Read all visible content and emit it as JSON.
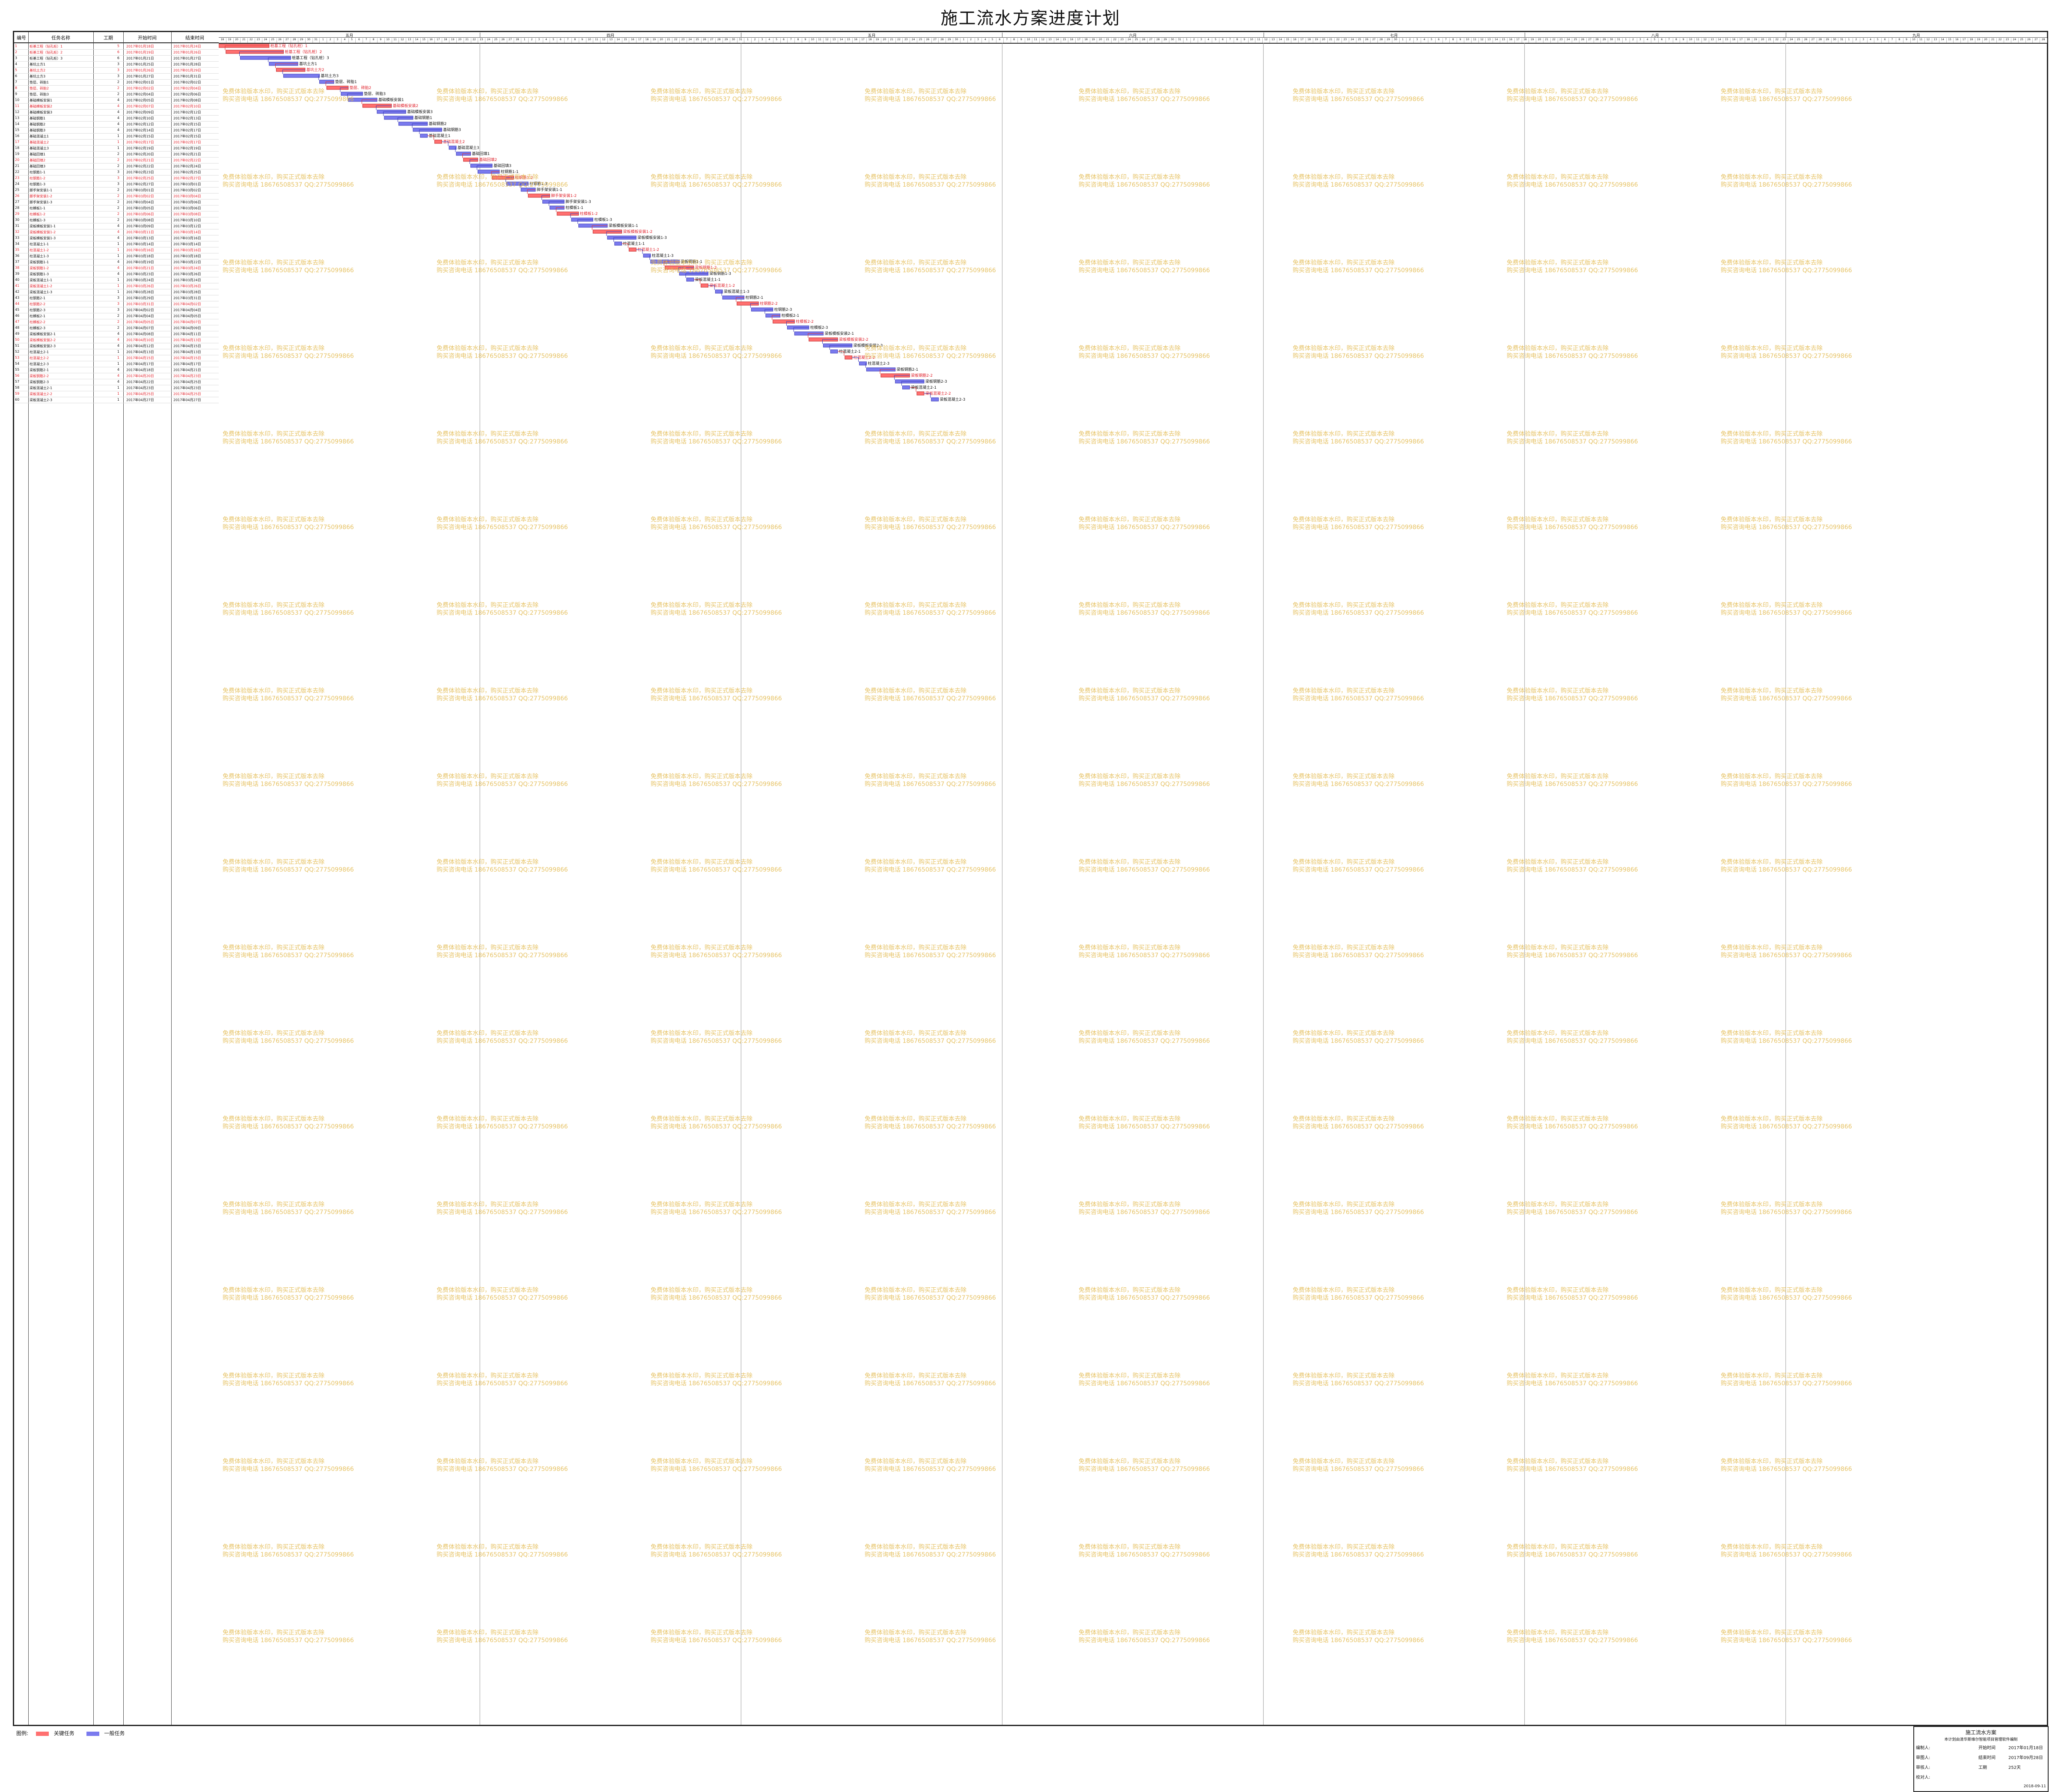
{
  "title": "施工流水方案进度计划",
  "columns": [
    "编号",
    "任务名称",
    "工期",
    "开始时间",
    "结束时间"
  ],
  "months": [
    "五月",
    "四月",
    "五月",
    "六月",
    "七月",
    "八月",
    "九月"
  ],
  "tasks": [
    {
      "id": "1",
      "name": "桩基工程（钻孔桩）1",
      "dur": "5",
      "start": "2017年01月18日",
      "end": "2017年01月24日",
      "crit": true
    },
    {
      "id": "2",
      "name": "桩基工程（钻孔桩）2",
      "dur": "6",
      "start": "2017年01月19日",
      "end": "2017年01月26日",
      "crit": true
    },
    {
      "id": "3",
      "name": "桩基工程（钻孔桩）3",
      "dur": "6",
      "start": "2017年01月21日",
      "end": "2017年01月27日",
      "crit": false
    },
    {
      "id": "4",
      "name": "基坑土方1",
      "dur": "3",
      "start": "2017年01月25日",
      "end": "2017年01月28日",
      "crit": false
    },
    {
      "id": "5",
      "name": "基坑土方2",
      "dur": "3",
      "start": "2017年01月26日",
      "end": "2017年01月29日",
      "crit": true
    },
    {
      "id": "6",
      "name": "基坑土方3",
      "dur": "3",
      "start": "2017年01月27日",
      "end": "2017年01月31日",
      "crit": false
    },
    {
      "id": "7",
      "name": "垫层、砖胎1",
      "dur": "2",
      "start": "2017年02月01日",
      "end": "2017年02月02日",
      "crit": false
    },
    {
      "id": "8",
      "name": "垫层、砖胎2",
      "dur": "2",
      "start": "2017年02月02日",
      "end": "2017年02月04日",
      "crit": true
    },
    {
      "id": "9",
      "name": "垫层、砖胎3",
      "dur": "2",
      "start": "2017年02月04日",
      "end": "2017年02月06日",
      "crit": false
    },
    {
      "id": "10",
      "name": "基础模板安装1",
      "dur": "4",
      "start": "2017年02月05日",
      "end": "2017年02月08日",
      "crit": false
    },
    {
      "id": "11",
      "name": "基础模板安装2",
      "dur": "4",
      "start": "2017年02月07日",
      "end": "2017年02月10日",
      "crit": true
    },
    {
      "id": "12",
      "name": "基础模板安装3",
      "dur": "4",
      "start": "2017年02月09日",
      "end": "2017年02月12日",
      "crit": false
    },
    {
      "id": "13",
      "name": "基础钢筋1",
      "dur": "4",
      "start": "2017年02月10日",
      "end": "2017年02月13日",
      "crit": false
    },
    {
      "id": "14",
      "name": "基础钢筋2",
      "dur": "4",
      "start": "2017年02月12日",
      "end": "2017年02月15日",
      "crit": false
    },
    {
      "id": "15",
      "name": "基础钢筋3",
      "dur": "4",
      "start": "2017年02月14日",
      "end": "2017年02月17日",
      "crit": false
    },
    {
      "id": "16",
      "name": "基础混凝土1",
      "dur": "1",
      "start": "2017年02月15日",
      "end": "2017年02月15日",
      "crit": false
    },
    {
      "id": "17",
      "name": "基础混凝土2",
      "dur": "1",
      "start": "2017年02月17日",
      "end": "2017年02月17日",
      "crit": true
    },
    {
      "id": "18",
      "name": "基础混凝土3",
      "dur": "1",
      "start": "2017年02月19日",
      "end": "2017年02月19日",
      "crit": false
    },
    {
      "id": "19",
      "name": "基础回填1",
      "dur": "2",
      "start": "2017年02月20日",
      "end": "2017年02月21日",
      "crit": false
    },
    {
      "id": "20",
      "name": "基础回填2",
      "dur": "2",
      "start": "2017年02月21日",
      "end": "2017年02月22日",
      "crit": true
    },
    {
      "id": "21",
      "name": "基础回填3",
      "dur": "2",
      "start": "2017年02月22日",
      "end": "2017年02月24日",
      "crit": false
    },
    {
      "id": "22",
      "name": "柱钢筋1-1",
      "dur": "3",
      "start": "2017年02月23日",
      "end": "2017年02月25日",
      "crit": false
    },
    {
      "id": "23",
      "name": "柱钢筋1-2",
      "dur": "3",
      "start": "2017年02月25日",
      "end": "2017年02月27日",
      "crit": true
    },
    {
      "id": "24",
      "name": "柱钢筋1-3",
      "dur": "3",
      "start": "2017年02月27日",
      "end": "2017年03月01日",
      "crit": false
    },
    {
      "id": "25",
      "name": "脚手架安装1-1",
      "dur": "2",
      "start": "2017年03月01日",
      "end": "2017年03月02日",
      "crit": false
    },
    {
      "id": "26",
      "name": "脚手架安装1-2",
      "dur": "2",
      "start": "2017年03月02日",
      "end": "2017年03月04日",
      "crit": true
    },
    {
      "id": "27",
      "name": "脚手架安装1-3",
      "dur": "2",
      "start": "2017年03月04日",
      "end": "2017年03月06日",
      "crit": false
    },
    {
      "id": "28",
      "name": "柱模板1-1",
      "dur": "2",
      "start": "2017年03月05日",
      "end": "2017年03月06日",
      "crit": false
    },
    {
      "id": "29",
      "name": "柱模板1-2",
      "dur": "2",
      "start": "2017年03月06日",
      "end": "2017年03月08日",
      "crit": true
    },
    {
      "id": "30",
      "name": "柱模板1-3",
      "dur": "2",
      "start": "2017年03月08日",
      "end": "2017年03月10日",
      "crit": false
    },
    {
      "id": "31",
      "name": "梁板模板安装1-1",
      "dur": "4",
      "start": "2017年03月09日",
      "end": "2017年03月12日",
      "crit": false
    },
    {
      "id": "32",
      "name": "梁板模板安装1-2",
      "dur": "4",
      "start": "2017年03月11日",
      "end": "2017年03月14日",
      "crit": true
    },
    {
      "id": "33",
      "name": "梁板模板安装1-3",
      "dur": "4",
      "start": "2017年03月13日",
      "end": "2017年03月16日",
      "crit": false
    },
    {
      "id": "34",
      "name": "柱混凝土1-1",
      "dur": "1",
      "start": "2017年03月14日",
      "end": "2017年03月14日",
      "crit": false
    },
    {
      "id": "35",
      "name": "柱混凝土1-2",
      "dur": "1",
      "start": "2017年03月16日",
      "end": "2017年03月16日",
      "crit": true
    },
    {
      "id": "36",
      "name": "柱混凝土1-3",
      "dur": "1",
      "start": "2017年03月18日",
      "end": "2017年03月18日",
      "crit": false
    },
    {
      "id": "37",
      "name": "梁板钢筋1-1",
      "dur": "4",
      "start": "2017年03月19日",
      "end": "2017年03月22日",
      "crit": false
    },
    {
      "id": "38",
      "name": "梁板钢筋1-2",
      "dur": "4",
      "start": "2017年03月21日",
      "end": "2017年03月24日",
      "crit": true
    },
    {
      "id": "39",
      "name": "梁板钢筋1-3",
      "dur": "4",
      "start": "2017年03月23日",
      "end": "2017年03月26日",
      "crit": false
    },
    {
      "id": "40",
      "name": "梁板混凝土1-1",
      "dur": "1",
      "start": "2017年03月24日",
      "end": "2017年03月24日",
      "crit": false
    },
    {
      "id": "41",
      "name": "梁板混凝土1-2",
      "dur": "1",
      "start": "2017年03月26日",
      "end": "2017年03月26日",
      "crit": true
    },
    {
      "id": "42",
      "name": "梁板混凝土1-3",
      "dur": "1",
      "start": "2017年03月28日",
      "end": "2017年03月28日",
      "crit": false
    },
    {
      "id": "43",
      "name": "柱钢筋2-1",
      "dur": "3",
      "start": "2017年03月29日",
      "end": "2017年03月31日",
      "crit": false
    },
    {
      "id": "44",
      "name": "柱钢筋2-2",
      "dur": "3",
      "start": "2017年03月31日",
      "end": "2017年04月02日",
      "crit": true
    },
    {
      "id": "45",
      "name": "柱钢筋2-3",
      "dur": "3",
      "start": "2017年04月02日",
      "end": "2017年04月04日",
      "crit": false
    },
    {
      "id": "46",
      "name": "柱模板2-1",
      "dur": "2",
      "start": "2017年04月04日",
      "end": "2017年04月05日",
      "crit": false
    },
    {
      "id": "47",
      "name": "柱模板2-2",
      "dur": "2",
      "start": "2017年04月05日",
      "end": "2017年04月07日",
      "crit": true
    },
    {
      "id": "48",
      "name": "柱模板2-3",
      "dur": "2",
      "start": "2017年04月07日",
      "end": "2017年04月09日",
      "crit": false
    },
    {
      "id": "49",
      "name": "梁板模板安装2-1",
      "dur": "4",
      "start": "2017年04月08日",
      "end": "2017年04月11日",
      "crit": false
    },
    {
      "id": "50",
      "name": "梁板模板安装2-2",
      "dur": "4",
      "start": "2017年04月10日",
      "end": "2017年04月13日",
      "crit": true
    },
    {
      "id": "51",
      "name": "梁板模板安装2-3",
      "dur": "4",
      "start": "2017年04月12日",
      "end": "2017年04月15日",
      "crit": false
    },
    {
      "id": "52",
      "name": "柱混凝土2-1",
      "dur": "1",
      "start": "2017年04月13日",
      "end": "2017年04月13日",
      "crit": false
    },
    {
      "id": "53",
      "name": "柱混凝土2-2",
      "dur": "1",
      "start": "2017年04月15日",
      "end": "2017年04月15日",
      "crit": true
    },
    {
      "id": "54",
      "name": "柱混凝土2-3",
      "dur": "1",
      "start": "2017年04月17日",
      "end": "2017年04月17日",
      "crit": false
    },
    {
      "id": "55",
      "name": "梁板钢筋2-1",
      "dur": "4",
      "start": "2017年04月18日",
      "end": "2017年04月21日",
      "crit": false
    },
    {
      "id": "56",
      "name": "梁板钢筋2-2",
      "dur": "4",
      "start": "2017年04月20日",
      "end": "2017年04月23日",
      "crit": true
    },
    {
      "id": "57",
      "name": "梁板钢筋2-3",
      "dur": "4",
      "start": "2017年04月22日",
      "end": "2017年04月25日",
      "crit": false
    },
    {
      "id": "58",
      "name": "梁板混凝土2-1",
      "dur": "1",
      "start": "2017年04月23日",
      "end": "2017年04月23日",
      "crit": false
    },
    {
      "id": "59",
      "name": "梁板混凝土2-2",
      "dur": "1",
      "start": "2017年04月25日",
      "end": "2017年04月25日",
      "crit": true
    },
    {
      "id": "60",
      "name": "梁板混凝土2-3",
      "dur": "1",
      "start": "2017年04月27日",
      "end": "2017年04月27日",
      "crit": false
    }
  ],
  "legend": {
    "label": "图例:",
    "crit": "关键任务",
    "normal": "一般任务"
  },
  "info": {
    "title": "施工流水方案",
    "subtitle": "本计划由清华斯维尔智能项目管理软件编制",
    "rows": [
      [
        "编制人:",
        "",
        "开始时间",
        "2017年01月18日"
      ],
      [
        "审图人:",
        "",
        "结束时间",
        "2017年09月28日"
      ],
      [
        "审核人:",
        "",
        "工期",
        "252天"
      ],
      [
        "校对人:",
        "",
        "",
        ""
      ]
    ],
    "date": "2018-09-11"
  },
  "watermark": [
    "免费体验版本水印，购买正式版本去除",
    "购买咨询电话 18676508537 QQ:2775099866"
  ],
  "colors": {
    "crit": "#ff7070",
    "normal": "#7a7aee",
    "crit_text": "#e0202a",
    "line": "#3a3ab8"
  }
}
